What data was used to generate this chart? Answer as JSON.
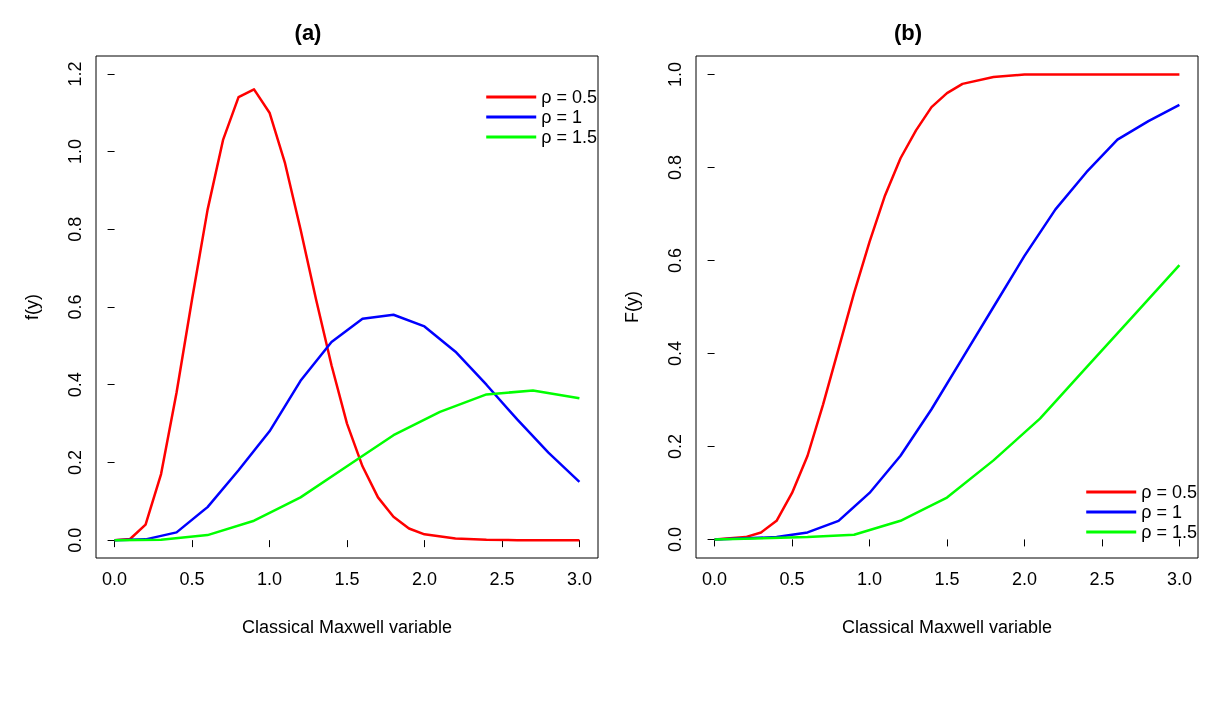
{
  "chart_data": [
    {
      "type": "line",
      "title": "(a)",
      "xlabel": "Classical Maxwell variable",
      "ylabel": "f(y)",
      "xlim": [
        -0.12,
        3.12
      ],
      "ylim": [
        -0.046,
        1.246
      ],
      "xticks": [
        {
          "value": 0,
          "label": "0.0"
        },
        {
          "value": 0.5,
          "label": "0.5"
        },
        {
          "value": 1,
          "label": "1.0"
        },
        {
          "value": 1.5,
          "label": "1.5"
        },
        {
          "value": 2,
          "label": "2.0"
        },
        {
          "value": 2.5,
          "label": "2.5"
        },
        {
          "value": 3,
          "label": "3.0"
        }
      ],
      "yticks": [
        {
          "value": 0,
          "label": "0.0"
        },
        {
          "value": 0.2,
          "label": "0.2"
        },
        {
          "value": 0.4,
          "label": "0.4"
        },
        {
          "value": 0.6,
          "label": "0.6"
        },
        {
          "value": 0.8,
          "label": "0.8"
        },
        {
          "value": 1,
          "label": "1.0"
        },
        {
          "value": 1.2,
          "label": "1.2"
        }
      ],
      "legend": "top right",
      "marker": "none",
      "line_style": "solid",
      "grid": false,
      "series": [
        {
          "name": "ρ = 0.5",
          "color": "#ff0000",
          "x": [
            0,
            0.1,
            0.2,
            0.3,
            0.4,
            0.5,
            0.6,
            0.7,
            0.8,
            0.9,
            1.0,
            1.1,
            1.2,
            1.3,
            1.4,
            1.5,
            1.6,
            1.7,
            1.8,
            1.9,
            2.0,
            2.2,
            2.4,
            2.6,
            3.0
          ],
          "values": [
            0,
            0.003,
            0.04,
            0.17,
            0.38,
            0.62,
            0.85,
            1.03,
            1.14,
            1.16,
            1.1,
            0.97,
            0.8,
            0.62,
            0.45,
            0.3,
            0.19,
            0.11,
            0.06,
            0.03,
            0.015,
            0.004,
            0.001,
            0,
            0
          ]
        },
        {
          "name": "ρ = 1",
          "color": "#0000ff",
          "x": [
            0,
            0.2,
            0.4,
            0.6,
            0.8,
            1.0,
            1.2,
            1.4,
            1.6,
            1.8,
            2.0,
            2.2,
            2.4,
            2.6,
            2.8,
            3.0
          ],
          "values": [
            0,
            0.002,
            0.02,
            0.085,
            0.18,
            0.28,
            0.41,
            0.51,
            0.57,
            0.58,
            0.55,
            0.485,
            0.4,
            0.31,
            0.225,
            0.15
          ]
        },
        {
          "name": "ρ = 1.5",
          "color": "#00ff00",
          "x": [
            0,
            0.3,
            0.6,
            0.9,
            1.2,
            1.5,
            1.8,
            2.1,
            2.4,
            2.7,
            3.0
          ],
          "values": [
            0,
            0.001,
            0.013,
            0.05,
            0.11,
            0.19,
            0.27,
            0.33,
            0.375,
            0.385,
            0.365
          ]
        }
      ]
    },
    {
      "type": "line",
      "title": "(b)",
      "xlabel": "Classical Maxwell variable",
      "ylabel": "F(y)",
      "xlim": [
        -0.12,
        3.12
      ],
      "ylim": [
        -0.04,
        1.04
      ],
      "xticks": [
        {
          "value": 0,
          "label": "0.0"
        },
        {
          "value": 0.5,
          "label": "0.5"
        },
        {
          "value": 1,
          "label": "1.0"
        },
        {
          "value": 1.5,
          "label": "1.5"
        },
        {
          "value": 2,
          "label": "2.0"
        },
        {
          "value": 2.5,
          "label": "2.5"
        },
        {
          "value": 3,
          "label": "3.0"
        }
      ],
      "yticks": [
        {
          "value": 0,
          "label": "0.0"
        },
        {
          "value": 0.2,
          "label": "0.2"
        },
        {
          "value": 0.4,
          "label": "0.4"
        },
        {
          "value": 0.6,
          "label": "0.6"
        },
        {
          "value": 0.8,
          "label": "0.8"
        },
        {
          "value": 1,
          "label": "1.0"
        }
      ],
      "legend": "bottom right",
      "marker": "none",
      "line_style": "solid",
      "grid": false,
      "series": [
        {
          "name": "ρ = 0.5",
          "color": "#ff0000",
          "x": [
            0,
            0.2,
            0.3,
            0.4,
            0.5,
            0.6,
            0.7,
            0.8,
            0.9,
            1.0,
            1.1,
            1.2,
            1.3,
            1.4,
            1.5,
            1.6,
            1.8,
            2.0,
            3.0
          ],
          "values": [
            0,
            0.005,
            0.015,
            0.04,
            0.1,
            0.18,
            0.29,
            0.41,
            0.53,
            0.64,
            0.74,
            0.82,
            0.88,
            0.93,
            0.96,
            0.98,
            0.995,
            1,
            1
          ]
        },
        {
          "name": "ρ = 1",
          "color": "#0000ff",
          "x": [
            0,
            0.4,
            0.6,
            0.8,
            1.0,
            1.2,
            1.4,
            1.6,
            1.8,
            2.0,
            2.2,
            2.4,
            2.6,
            2.8,
            3.0
          ],
          "values": [
            0,
            0.005,
            0.015,
            0.04,
            0.1,
            0.18,
            0.28,
            0.39,
            0.5,
            0.61,
            0.71,
            0.79,
            0.86,
            0.9,
            0.935
          ]
        },
        {
          "name": "ρ = 1.5",
          "color": "#00ff00",
          "x": [
            0,
            0.6,
            0.9,
            1.2,
            1.5,
            1.8,
            2.1,
            2.4,
            2.7,
            3.0
          ],
          "values": [
            0,
            0.005,
            0.01,
            0.04,
            0.09,
            0.17,
            0.26,
            0.37,
            0.48,
            0.59
          ]
        }
      ]
    }
  ]
}
